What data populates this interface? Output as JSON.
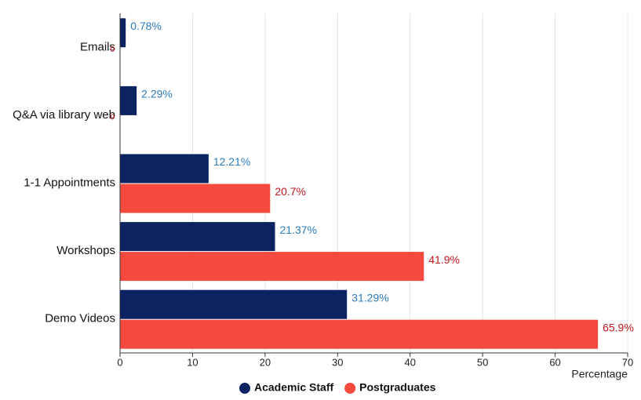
{
  "chart_data": {
    "type": "hbar",
    "categories": [
      "Emails",
      "Q&A  via library web",
      "1-1 Appointments",
      "Workshops",
      "Demo Videos"
    ],
    "series": [
      {
        "name": "Academic Staff",
        "color": "#0b2461",
        "label_color": "#2b7bbf",
        "values": [
          0.78,
          2.29,
          12.21,
          21.37,
          31.29
        ],
        "value_labels": [
          "0.78%",
          "2.29%",
          "12.21%",
          "21.37%",
          "31.29%"
        ]
      },
      {
        "name": "Postgraduates",
        "color": "#f64a3e",
        "label_color": "#c4161c",
        "values": [
          0,
          0,
          20.7,
          41.9,
          65.9
        ],
        "value_labels": [
          "0",
          "0",
          "20.7%",
          "41.9%",
          "65.9%"
        ]
      }
    ],
    "xlabel": "Percentage",
    "xlim": [
      0,
      70
    ],
    "xticks": [
      0,
      10,
      20,
      30,
      40,
      50,
      60,
      70
    ],
    "grid": true,
    "legend": "bottom"
  }
}
